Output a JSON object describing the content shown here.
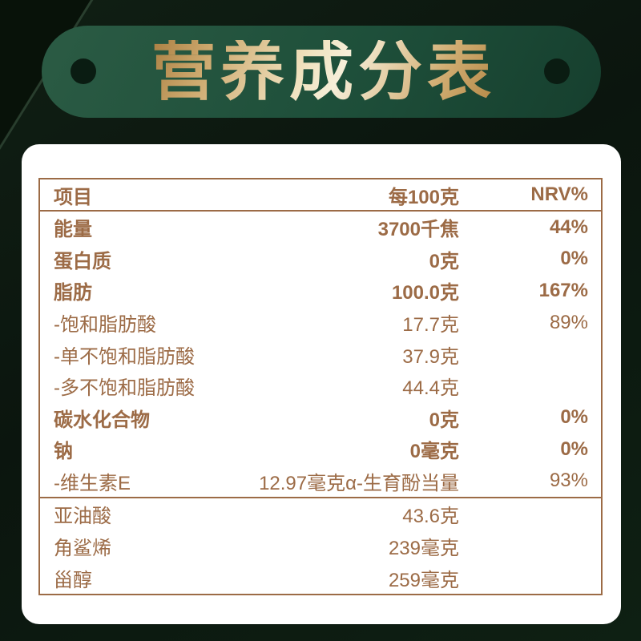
{
  "banner": {
    "title": "营养成分表"
  },
  "table": {
    "header": {
      "item": "项目",
      "per100g": "每100克",
      "nrv": "NRV%"
    },
    "rows": [
      {
        "name": "能量",
        "value": "3700千焦",
        "nrv": "44%",
        "bold": true,
        "section_start": false
      },
      {
        "name": "蛋白质",
        "value": "0克",
        "nrv": "0%",
        "bold": true,
        "section_start": false
      },
      {
        "name": "脂肪",
        "value": "100.0克",
        "nrv": "167%",
        "bold": true,
        "section_start": false
      },
      {
        "name": "-饱和脂肪酸",
        "value": "17.7克",
        "nrv": "89%",
        "bold": false,
        "section_start": false
      },
      {
        "name": "-单不饱和脂肪酸",
        "value": "37.9克",
        "nrv": "",
        "bold": false,
        "section_start": false
      },
      {
        "name": "-多不饱和脂肪酸",
        "value": "44.4克",
        "nrv": "",
        "bold": false,
        "section_start": false
      },
      {
        "name": "碳水化合物",
        "value": "0克",
        "nrv": "0%",
        "bold": true,
        "section_start": false
      },
      {
        "name": "钠",
        "value": "0毫克",
        "nrv": "0%",
        "bold": true,
        "section_start": false
      },
      {
        "name": "-维生素E",
        "value": "12.97毫克α-生育酚当量",
        "nrv": "93%",
        "bold": false,
        "section_start": false
      },
      {
        "name": "亚油酸",
        "value": "43.6克",
        "nrv": "",
        "bold": false,
        "section_start": true
      },
      {
        "name": "角鲨烯",
        "value": "239毫克",
        "nrv": "",
        "bold": false,
        "section_start": false
      },
      {
        "name": "甾醇",
        "value": "259毫克",
        "nrv": "",
        "bold": false,
        "section_start": false
      }
    ]
  },
  "colors": {
    "accent_brown": "#9c6b46",
    "banner_green": "#1e4f3a",
    "gold_light": "#f6eed8",
    "gold_dark": "#a87c3f",
    "card_white": "#ffffff",
    "background_dark_green": "#0b150e"
  }
}
